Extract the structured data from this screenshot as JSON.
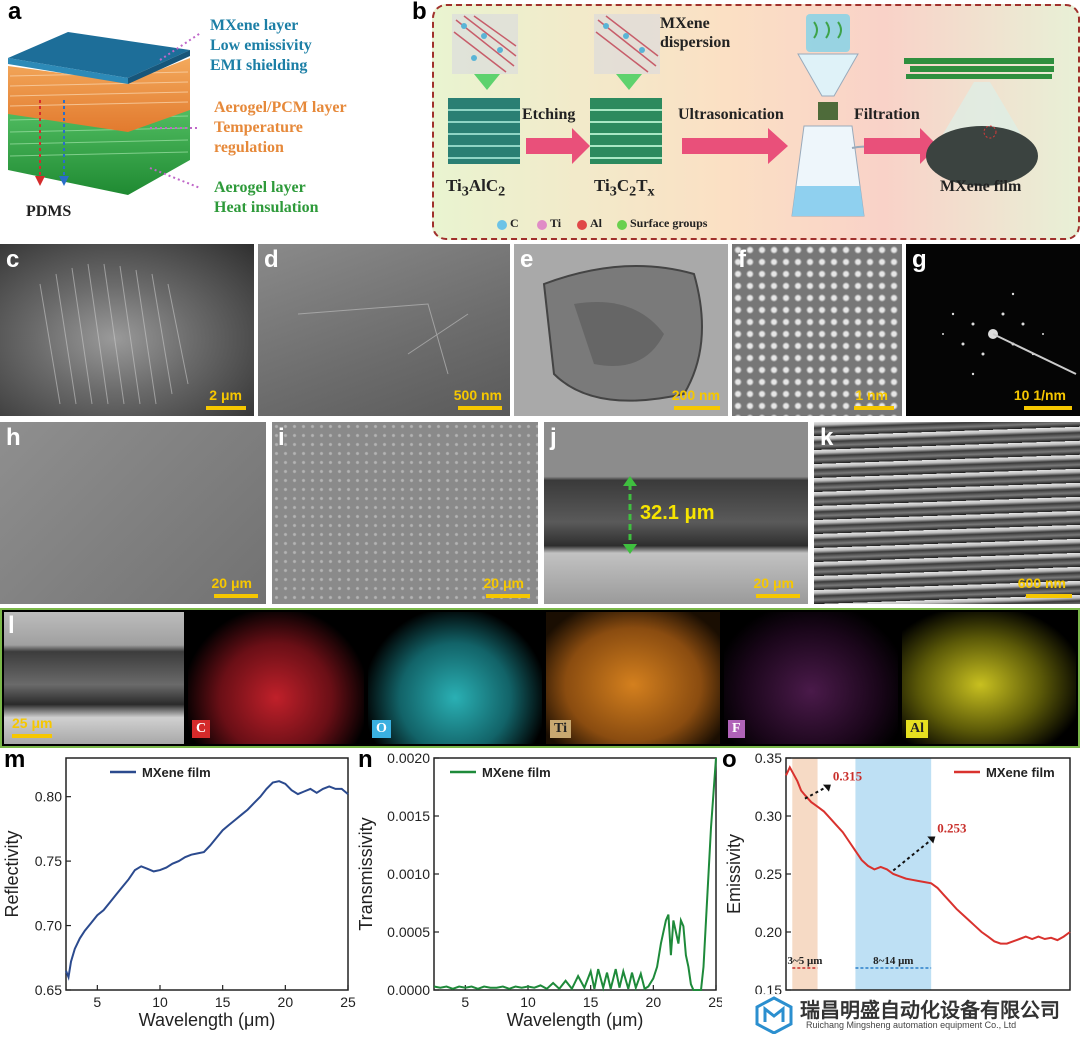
{
  "panel_letters": {
    "a": "a",
    "b": "b",
    "c": "c",
    "d": "d",
    "e": "e",
    "f": "f",
    "g": "g",
    "h": "h",
    "i": "i",
    "j": "j",
    "k": "k",
    "l": "l",
    "m": "m",
    "n": "n",
    "o": "o"
  },
  "panel_a": {
    "mxene_layer": [
      "MXene layer",
      "Low emissivity",
      "EMI shielding"
    ],
    "pcm_layer": [
      "Aerogel/PCM layer",
      "Temperature",
      "regulation"
    ],
    "aerogel_layer": [
      "Aerogel layer",
      "Heat insulation"
    ],
    "pdms": "PDMS",
    "colors": {
      "mxene": "#1c7fa6",
      "pcm": "#e6893a",
      "aerogel": "#2e9a3a"
    }
  },
  "panel_b": {
    "mxene_dispersion": [
      "MXene",
      "dispersion"
    ],
    "etching": "Etching",
    "ultrasonication": "Ultrasonication",
    "filtration": "Filtration",
    "ti3alc2": [
      "Ti",
      "3",
      "AlC",
      "2"
    ],
    "ti3c2tx": [
      "Ti",
      "3",
      "C",
      "2",
      "T",
      "x"
    ],
    "mxene_film": "MXene film",
    "legend": [
      "C",
      "Ti",
      "Al",
      "Surface groups"
    ]
  },
  "scale_bars": {
    "c": "2 μm",
    "d": "500 nm",
    "e": "200 nm",
    "f": "1 nm",
    "g": "10 1/nm",
    "h": "20 μm",
    "i": "20 μm",
    "j": "20 μm",
    "k": "600 nm",
    "l": "25 μm"
  },
  "panel_j": {
    "thickness": "32.1 μm"
  },
  "panel_l": {
    "elements": [
      "C",
      "O",
      "Ti",
      "F",
      "Al"
    ]
  },
  "watermark": {
    "company_cn": "瑞昌明盛自动化设备有限公司",
    "company_en": "Ruichang Mingsheng automation equipment Co., Ltd"
  },
  "chart_data": [
    {
      "type": "line",
      "panel": "m",
      "xlabel": "Wavelength (μm)",
      "ylabel": "Reflectivity",
      "xlim": [
        2.5,
        25
      ],
      "ylim": [
        0.65,
        0.83
      ],
      "xticks": [
        5,
        10,
        15,
        20,
        25
      ],
      "yticks": [
        0.65,
        0.7,
        0.75,
        0.8
      ],
      "ytick_labels": [
        "0.65",
        "0.70",
        "0.75",
        "0.80"
      ],
      "series": [
        {
          "name": "MXene film",
          "color": "#2b4a8e",
          "x": [
            2.5,
            2.7,
            2.9,
            3.2,
            3.6,
            4,
            4.5,
            5,
            5.5,
            6,
            6.5,
            7,
            7.5,
            8,
            8.5,
            9,
            9.5,
            10,
            10.5,
            11,
            11.5,
            12,
            12.5,
            13,
            13.5,
            14,
            14.5,
            15,
            15.5,
            16,
            16.5,
            17,
            17.5,
            18,
            18.5,
            19,
            19.5,
            20,
            20.5,
            21,
            21.5,
            22,
            22.5,
            23,
            23.5,
            24,
            24.5,
            25
          ],
          "y": [
            0.665,
            0.66,
            0.672,
            0.682,
            0.69,
            0.696,
            0.702,
            0.708,
            0.712,
            0.718,
            0.724,
            0.73,
            0.736,
            0.743,
            0.746,
            0.744,
            0.742,
            0.743,
            0.745,
            0.748,
            0.75,
            0.753,
            0.755,
            0.756,
            0.757,
            0.762,
            0.768,
            0.774,
            0.778,
            0.782,
            0.786,
            0.79,
            0.795,
            0.8,
            0.806,
            0.811,
            0.812,
            0.81,
            0.805,
            0.802,
            0.804,
            0.806,
            0.803,
            0.806,
            0.808,
            0.806,
            0.806,
            0.802
          ]
        }
      ]
    },
    {
      "type": "line",
      "panel": "n",
      "xlabel": "Wavelength (μm)",
      "ylabel": "Transmissivity",
      "xlim": [
        2.5,
        25
      ],
      "ylim": [
        0,
        0.002
      ],
      "xticks": [
        5,
        10,
        15,
        20,
        25
      ],
      "yticks": [
        0,
        0.0005,
        0.001,
        0.0015,
        0.002
      ],
      "ytick_labels": [
        "0.0000",
        "0.0005",
        "0.0010",
        "0.0015",
        "0.0020"
      ],
      "series": [
        {
          "name": "MXene film",
          "color": "#1e8a3a",
          "x": [
            2.5,
            3,
            3.5,
            4,
            4.5,
            5,
            5.5,
            6,
            6.5,
            7,
            7.5,
            8,
            8.5,
            9,
            9.5,
            10,
            10.5,
            11,
            11.5,
            12,
            12.5,
            13,
            13.5,
            14,
            14.5,
            15,
            15.3,
            15.6,
            16,
            16.3,
            16.6,
            17,
            17.3,
            17.6,
            18,
            18.3,
            18.6,
            19,
            19.3,
            19.6,
            20,
            20.3,
            20.6,
            21,
            21.2,
            21.4,
            21.6,
            21.8,
            22,
            22.2,
            22.4,
            22.6,
            22.8,
            23,
            23.2,
            23.4,
            23.6,
            23.8,
            24,
            24.2,
            24.4,
            24.6,
            24.8,
            25
          ],
          "y": [
            3e-05,
            2e-05,
            3e-05,
            1e-05,
            3e-05,
            2e-05,
            3e-05,
            1e-05,
            3e-05,
            2e-05,
            2e-05,
            3e-05,
            1e-05,
            3e-05,
            2e-05,
            3e-05,
            2e-05,
            4e-05,
            1e-05,
            6e-05,
            1e-05,
            8e-05,
            1e-05,
            0.00012,
            2e-05,
            0.00016,
            1e-05,
            0.00018,
            2e-05,
            0.00015,
            1e-05,
            0.00018,
            2e-05,
            0.00016,
            1e-05,
            0.00015,
            2e-05,
            0.00014,
            1e-05,
            3e-05,
            0.0001,
            0.0002,
            0.0004,
            0.0006,
            0.00065,
            0.0003,
            0.0006,
            0.0005,
            0.0004,
            0.0006,
            0.00055,
            0.0003,
            0.0002,
            5e-05,
            0.0,
            0.0,
            0.0,
            0.0,
            0.0002,
            0.0006,
            0.001,
            0.0014,
            0.0017,
            0.002
          ]
        }
      ]
    },
    {
      "type": "line",
      "panel": "o",
      "xlabel": "",
      "ylabel": "Emissivity",
      "xlim": [
        2.5,
        25
      ],
      "ylim": [
        0.15,
        0.35
      ],
      "yticks": [
        0.15,
        0.2,
        0.25,
        0.3,
        0.35
      ],
      "ytick_labels": [
        "0.15",
        "0.20",
        "0.25",
        "0.30",
        "0.35"
      ],
      "bands": [
        {
          "label": "3~5 μm",
          "from": 3,
          "to": 5,
          "color": "#f3cdb2"
        },
        {
          "label": "8~14 μm",
          "from": 8,
          "to": 14,
          "color": "#a8d6f0"
        }
      ],
      "annotations": [
        {
          "text": "0.315",
          "x": 4,
          "y": 0.315
        },
        {
          "text": "0.253",
          "x": 11,
          "y": 0.253
        }
      ],
      "series": [
        {
          "name": "MXene film",
          "color": "#d9322e",
          "x": [
            2.5,
            2.8,
            3.1,
            3.4,
            3.7,
            4,
            4.5,
            5,
            5.5,
            6,
            6.5,
            7,
            7.5,
            8,
            8.5,
            9,
            9.5,
            10,
            10.5,
            11,
            11.5,
            12,
            12.5,
            13,
            13.5,
            14,
            14.5,
            15,
            15.5,
            16,
            16.5,
            17,
            17.5,
            18,
            18.5,
            19,
            19.5,
            20,
            20.5,
            21,
            21.5,
            22,
            22.5,
            23,
            23.5,
            24,
            24.5,
            25
          ],
          "y": [
            0.335,
            0.342,
            0.336,
            0.33,
            0.322,
            0.318,
            0.312,
            0.308,
            0.304,
            0.298,
            0.292,
            0.286,
            0.278,
            0.27,
            0.262,
            0.257,
            0.254,
            0.256,
            0.254,
            0.25,
            0.248,
            0.246,
            0.245,
            0.244,
            0.243,
            0.242,
            0.238,
            0.232,
            0.226,
            0.22,
            0.215,
            0.21,
            0.205,
            0.2,
            0.196,
            0.192,
            0.19,
            0.19,
            0.192,
            0.194,
            0.196,
            0.194,
            0.196,
            0.194,
            0.195,
            0.193,
            0.196,
            0.2
          ]
        }
      ]
    }
  ]
}
